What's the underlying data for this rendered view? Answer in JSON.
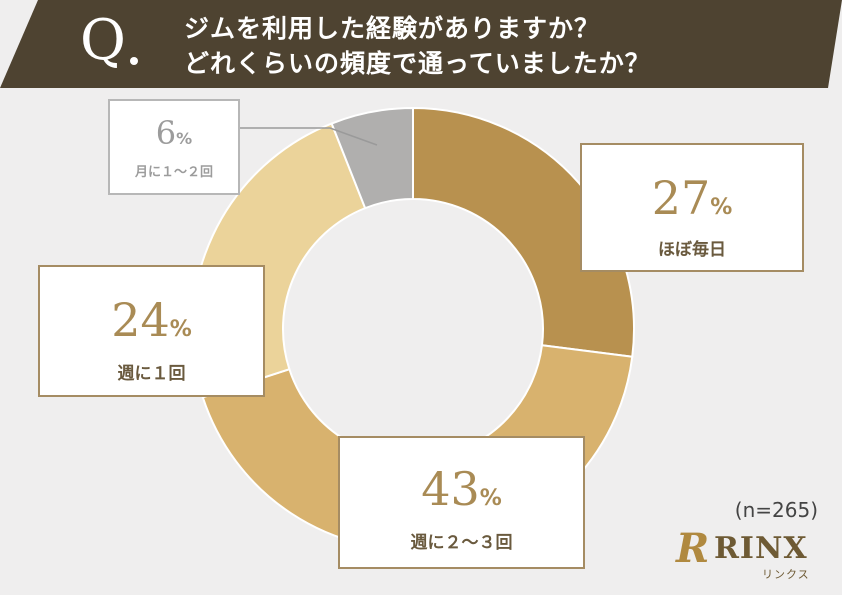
{
  "header": {
    "q_mark": "Q",
    "line1": "ジムを利用した経験がありますか？",
    "line2": "どれくらいの頻度で通っていましたか？"
  },
  "chart_data": {
    "type": "pie",
    "donut": true,
    "unit": "%",
    "slices": [
      {
        "label": "ほぼ毎日",
        "value": 27,
        "color": "#b8914f"
      },
      {
        "label": "週に２～３回",
        "value": 43,
        "color": "#d8b26e"
      },
      {
        "label": "週に１回",
        "value": 24,
        "color": "#ebd39a"
      },
      {
        "label": "月に１～２回",
        "value": 6,
        "color": "#b0afae"
      }
    ],
    "sample_size": "(n=265)"
  },
  "labels": {
    "s0": {
      "num": "27",
      "unit": "%",
      "cat": "ほぼ毎日"
    },
    "s1": {
      "num": "43",
      "unit": "%",
      "cat": "週に２～３回"
    },
    "s2": {
      "num": "24",
      "unit": "%",
      "cat": "週に１回"
    },
    "s3": {
      "num": "6",
      "unit": "%",
      "cat": "月に１～２回"
    }
  },
  "logo": {
    "mark": "R",
    "text": "RINX",
    "kana": "リンクス"
  },
  "colors": {
    "banner": "#4e4331",
    "accent": "#a98b55",
    "border": "#a58c63"
  }
}
